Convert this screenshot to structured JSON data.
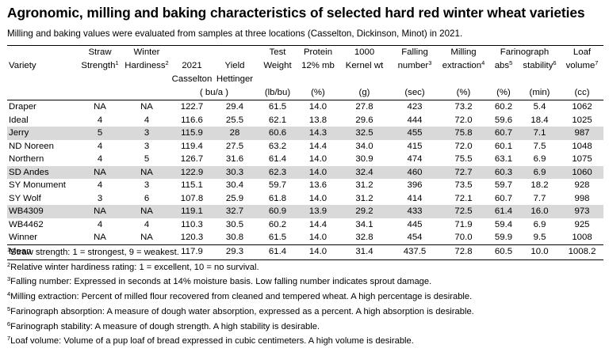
{
  "title": "Agronomic, milling and baking characteristics of selected hard red winter wheat varieties",
  "subtitle": "Milling and baking values were evaluated from samples at three locations (Casselton, Dickinson, Minot) in 2021.",
  "header": {
    "row1": [
      "",
      "Straw",
      "Winter",
      "",
      "",
      "Test",
      "Protein",
      "1000",
      "Falling",
      "Milling",
      "Farinograph",
      "",
      "Loaf"
    ],
    "row2": [
      "Variety",
      "Strength",
      "Hardiness",
      "2021",
      "Yield",
      "Weight",
      "12% mb",
      "Kernel wt",
      "number",
      "extraction",
      "abs",
      "stability",
      "volume"
    ],
    "row2_sub": [
      "Casselton",
      "Hettinger"
    ],
    "sups": {
      "straw": "1",
      "hard": "2",
      "fall": "3",
      "mill": "4",
      "abs": "5",
      "stab": "6",
      "loaf": "7"
    },
    "units": [
      "( bu/a )",
      "(lb/bu)",
      "(%)",
      "(g)",
      "(sec)",
      "(%)",
      "(%)",
      "(min)",
      "(cc)"
    ]
  },
  "rows": [
    [
      "Draper",
      "NA",
      "NA",
      "122.7",
      "29.4",
      "61.5",
      "14.0",
      "27.8",
      "423",
      "73.2",
      "60.2",
      "5.4",
      "1062"
    ],
    [
      "Ideal",
      "4",
      "4",
      "116.6",
      "25.5",
      "62.1",
      "13.8",
      "29.6",
      "444",
      "72.0",
      "59.6",
      "18.4",
      "1025"
    ],
    [
      "Jerry",
      "5",
      "3",
      "115.9",
      "28",
      "60.6",
      "14.3",
      "32.5",
      "455",
      "75.8",
      "60.7",
      "7.1",
      "987"
    ],
    [
      "ND Noreen",
      "4",
      "3",
      "119.4",
      "27.5",
      "63.2",
      "14.4",
      "34.0",
      "415",
      "72.0",
      "60.1",
      "7.5",
      "1048"
    ],
    [
      "Northern",
      "4",
      "5",
      "126.7",
      "31.6",
      "61.4",
      "14.0",
      "30.9",
      "474",
      "75.5",
      "63.1",
      "6.9",
      "1075"
    ],
    [
      "SD Andes",
      "NA",
      "NA",
      "122.9",
      "30.3",
      "62.3",
      "14.0",
      "32.4",
      "460",
      "72.7",
      "60.3",
      "6.9",
      "1060"
    ],
    [
      "SY Monument",
      "4",
      "3",
      "115.1",
      "30.4",
      "59.7",
      "13.6",
      "31.2",
      "396",
      "73.5",
      "59.7",
      "18.2",
      "928"
    ],
    [
      "SY Wolf",
      "3",
      "6",
      "107.8",
      "25.9",
      "61.8",
      "14.0",
      "31.2",
      "414",
      "72.1",
      "60.7",
      "7.7",
      "998"
    ],
    [
      "WB4309",
      "NA",
      "NA",
      "119.1",
      "32.7",
      "60.9",
      "13.9",
      "29.2",
      "433",
      "72.5",
      "61.4",
      "16.0",
      "973"
    ],
    [
      "WB4462",
      "4",
      "4",
      "110.3",
      "30.5",
      "60.2",
      "14.4",
      "34.1",
      "445",
      "71.9",
      "59.4",
      "6.9",
      "925"
    ],
    [
      "Winner",
      "NA",
      "NA",
      "120.3",
      "30.8",
      "61.5",
      "14.0",
      "32.8",
      "454",
      "70.0",
      "59.9",
      "9.5",
      "1008"
    ]
  ],
  "mean": [
    "Mean",
    "",
    "",
    "117.9",
    "29.3",
    "61.4",
    "14.0",
    "31.4",
    "437.5",
    "72.8",
    "60.5",
    "10.0",
    "1008.2"
  ],
  "shaded_rows": [
    2,
    5,
    8
  ],
  "shade_color": "#d9d9d9",
  "footnotes": [
    {
      "n": "1",
      "text": "Straw strength: 1 = strongest, 9 = weakest."
    },
    {
      "n": "2",
      "text": "Relative winter hardiness rating: 1 = excellent, 10 = no survival."
    },
    {
      "n": "3",
      "text": "Falling number: Expressed in seconds at 14% moisture basis. Low falling number indicates sprout damage."
    },
    {
      "n": "4",
      "text": "Milling extraction: Percent of milled flour recovered from cleaned and tempered wheat. A high percentage is desirable."
    },
    {
      "n": "5",
      "text": "Farinograph absorption: A measure of dough water absorption, expressed as a percent. A high absorption is desirable."
    },
    {
      "n": "6",
      "text": "Farinograph stability: A measure of dough strength. A high stability is desirable."
    },
    {
      "n": "7",
      "text": "Loaf volume: Volume of a pup loaf of bread expressed in cubic centimeters. A high volume is desirable."
    }
  ]
}
